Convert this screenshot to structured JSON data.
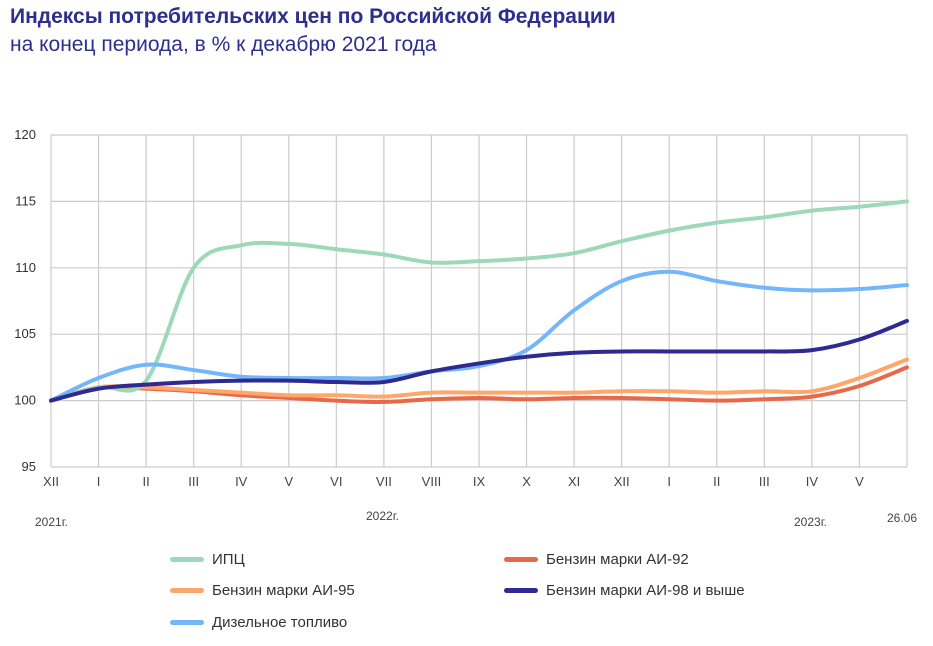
{
  "header": {
    "title": "Индексы потребительских цен по Российской Федерации",
    "subtitle": "на конец периода, в % к декабрю 2021 года"
  },
  "chart_data": {
    "type": "line",
    "title": "Индексы потребительских цен по Российской Федерации",
    "subtitle": "на конец периода, в % к декабрю 2021 года",
    "xlabel": "",
    "ylabel": "",
    "ylim": [
      95,
      120
    ],
    "yticks": [
      95,
      100,
      105,
      110,
      115,
      120
    ],
    "grid": true,
    "legend_position": "bottom",
    "categories": [
      "XII",
      "I",
      "II",
      "III",
      "IV",
      "V",
      "VI",
      "VII",
      "VIII",
      "IX",
      "X",
      "XI",
      "XII",
      "I",
      "II",
      "III",
      "IV",
      "V",
      "26.06"
    ],
    "x_tick_labels": [
      "XII",
      "I",
      "II",
      "III",
      "IV",
      "V",
      "VI",
      "VII",
      "VIII",
      "IX",
      "X",
      "XI",
      "XII",
      "I",
      "II",
      "III",
      "IV",
      "V"
    ],
    "year_labels": [
      {
        "label": "2021г.",
        "index": 0
      },
      {
        "label": "2022г.",
        "index": 7
      },
      {
        "label": "2023г.",
        "index": 16
      },
      {
        "label": "26.06",
        "index": 18
      }
    ],
    "series": [
      {
        "name": "ИПЦ",
        "color": "#9dd9b8",
        "values": [
          100,
          101.0,
          101.5,
          110.0,
          111.7,
          111.8,
          111.4,
          111.0,
          110.4,
          110.5,
          110.7,
          111.1,
          112.0,
          112.8,
          113.4,
          113.8,
          114.3,
          114.6,
          115.0
        ]
      },
      {
        "name": "Бензин марки АИ-95",
        "color": "#ffa66b",
        "values": [
          100,
          101.0,
          101.0,
          100.8,
          100.6,
          100.4,
          100.4,
          100.3,
          100.6,
          100.6,
          100.6,
          100.6,
          100.7,
          100.7,
          100.6,
          100.7,
          100.7,
          101.7,
          103.1
        ]
      },
      {
        "name": "Дизельное топливо",
        "color": "#74b6fb",
        "values": [
          100,
          101.7,
          102.7,
          102.3,
          101.8,
          101.7,
          101.7,
          101.7,
          102.2,
          102.6,
          103.8,
          106.8,
          109.0,
          109.7,
          109.0,
          108.5,
          108.3,
          108.4,
          108.7
        ]
      },
      {
        "name": "Бензин марки АИ-92",
        "color": "#e6694a",
        "values": [
          100,
          101.0,
          100.9,
          100.7,
          100.4,
          100.2,
          100.0,
          99.9,
          100.1,
          100.2,
          100.1,
          100.2,
          100.2,
          100.1,
          100.0,
          100.1,
          100.3,
          101.1,
          102.5
        ]
      },
      {
        "name": "Бензин марки АИ-98 и выше",
        "color": "#2e2a92",
        "values": [
          100,
          100.9,
          101.2,
          101.4,
          101.5,
          101.5,
          101.4,
          101.4,
          102.2,
          102.8,
          103.3,
          103.6,
          103.7,
          103.7,
          103.7,
          103.7,
          103.8,
          104.6,
          106.0
        ]
      }
    ]
  },
  "legend": {
    "items": [
      {
        "label": "ИПЦ",
        "color": "#9dd9b8"
      },
      {
        "label": "Бензин марки АИ-92",
        "color": "#e6694a"
      },
      {
        "label": "Бензин марки АИ-95",
        "color": "#ffa66b"
      },
      {
        "label": "Бензин марки АИ-98 и выше",
        "color": "#2e2a92"
      },
      {
        "label": "Дизельное топливо",
        "color": "#74b6fb"
      }
    ]
  }
}
